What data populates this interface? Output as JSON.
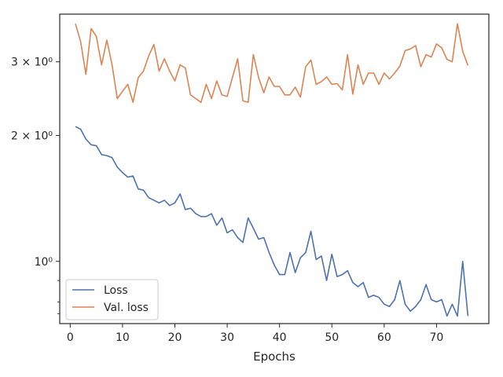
{
  "chart_data": {
    "type": "line",
    "title": "",
    "xlabel": "Epochs",
    "ylabel": "",
    "yscale": "log",
    "xlim": [
      -2,
      80
    ],
    "ylim": [
      0.71,
      3.9
    ],
    "xticks": [
      0,
      10,
      20,
      30,
      40,
      50,
      60,
      70
    ],
    "yticks_major": [
      {
        "value": 1.0,
        "label": "10⁰"
      },
      {
        "value": 2.0,
        "label": "2 × 10⁰"
      },
      {
        "value": 3.0,
        "label": "3 × 10⁰"
      }
    ],
    "yticks_minor": [
      0.75,
      0.8,
      0.9
    ],
    "legend_position": "lower-left",
    "colors": {
      "loss": "#4c72b0",
      "val_loss": "#dd8452",
      "axis": "#262626"
    },
    "series": [
      {
        "name": "Loss",
        "color": "#4c72b0",
        "values": [
          2.1,
          2.07,
          1.96,
          1.9,
          1.89,
          1.8,
          1.79,
          1.77,
          1.68,
          1.63,
          1.59,
          1.6,
          1.49,
          1.48,
          1.42,
          1.4,
          1.38,
          1.4,
          1.36,
          1.38,
          1.45,
          1.33,
          1.34,
          1.3,
          1.28,
          1.28,
          1.3,
          1.22,
          1.27,
          1.17,
          1.19,
          1.14,
          1.11,
          1.27,
          1.2,
          1.13,
          1.14,
          1.05,
          0.98,
          0.93,
          0.93,
          1.05,
          0.94,
          1.02,
          1.05,
          1.18,
          1.01,
          1.03,
          0.9,
          1.04,
          0.92,
          0.93,
          0.95,
          0.89,
          0.87,
          0.89,
          0.82,
          0.83,
          0.82,
          0.79,
          0.78,
          0.81,
          0.9,
          0.79,
          0.76,
          0.78,
          0.81,
          0.88,
          0.81,
          0.8,
          0.81,
          0.74,
          0.79,
          0.74,
          1.0,
          0.74
        ]
      },
      {
        "name": "Val. loss",
        "color": "#dd8452",
        "values": [
          3.7,
          3.35,
          2.8,
          3.6,
          3.45,
          2.95,
          3.38,
          2.95,
          2.45,
          2.55,
          2.65,
          2.4,
          2.75,
          2.85,
          3.1,
          3.3,
          2.85,
          3.05,
          2.85,
          2.7,
          2.95,
          2.9,
          2.5,
          2.45,
          2.4,
          2.65,
          2.45,
          2.7,
          2.5,
          2.48,
          2.75,
          3.05,
          2.42,
          2.4,
          3.12,
          2.75,
          2.53,
          2.76,
          2.62,
          2.62,
          2.5,
          2.5,
          2.61,
          2.47,
          2.92,
          3.03,
          2.65,
          2.69,
          2.76,
          2.65,
          2.66,
          2.57,
          3.12,
          2.51,
          2.95,
          2.65,
          2.82,
          2.82,
          2.65,
          2.82,
          2.73,
          2.82,
          2.93,
          3.19,
          3.22,
          3.28,
          2.92,
          3.12,
          3.08,
          3.31,
          3.24,
          3.04,
          3.0,
          3.7,
          3.18,
          2.94
        ]
      }
    ]
  }
}
